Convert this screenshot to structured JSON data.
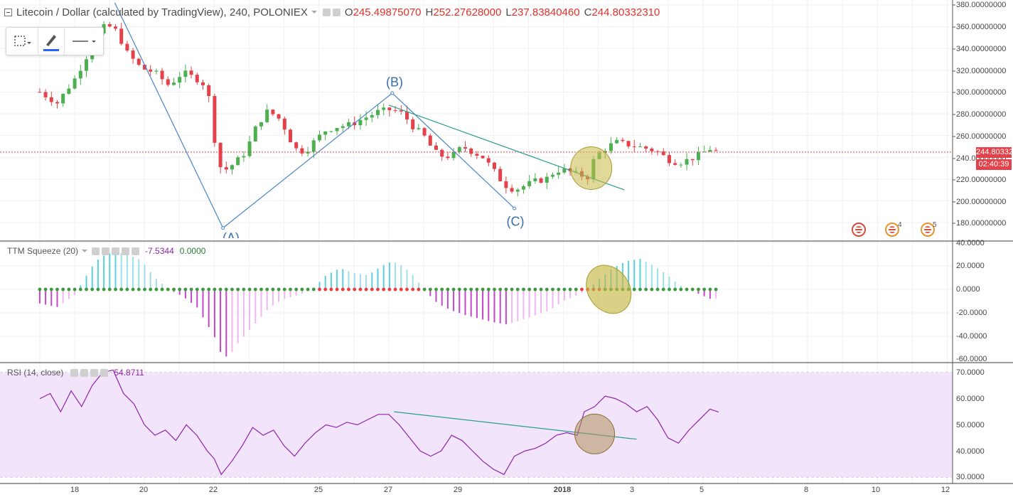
{
  "symbol_header": {
    "title": "Litecoin / Dollar (calculated by TradingView), 240, POLONIEX",
    "open_label": "O",
    "open": "245.49875070",
    "high_label": "H",
    "high": "252.27628000",
    "low_label": "L",
    "low": "237.83840460",
    "close_label": "C",
    "close": "244.80332310"
  },
  "toolbar": {
    "tools": [
      "selection-icon",
      "brush-icon",
      "line-style-icon"
    ],
    "brush_color": "#2962ff"
  },
  "price_axis": {
    "labels": [
      "380.00000000",
      "360.00000000",
      "340.00000000",
      "320.00000000",
      "300.00000000",
      "280.00000000",
      "260.00000000",
      "240.00000000",
      "220.00000000",
      "200.00000000",
      "180.00000000"
    ],
    "last_price": "244.80332310",
    "countdown": "02:40:39"
  },
  "waves": {
    "a": "(A)",
    "b": "(B)",
    "c": "(C)"
  },
  "events": {
    "count_2": "4",
    "count_3": "5"
  },
  "squeeze": {
    "legend": "TTM Squeeze (20)",
    "value1": "-7.5344",
    "value2": "0.0000",
    "axis_labels": [
      "40.0000",
      "20.0000",
      "0.0000",
      "-20.0000",
      "-40.0000",
      "-60.0000"
    ]
  },
  "rsi": {
    "legend": "RSI (14, close)",
    "value": "54.8711",
    "axis_labels": [
      "70.0000",
      "60.0000",
      "50.0000",
      "40.0000",
      "30.0000"
    ]
  },
  "time_axis": {
    "labels": [
      "18",
      "20",
      "22",
      "25",
      "27",
      "29",
      "2018",
      "3",
      "5",
      "8",
      "10",
      "12"
    ]
  },
  "colors": {
    "up": "#4caf50",
    "down": "#e5414a",
    "wave_line": "#4a86c8",
    "trend_line": "#2a9d8f",
    "highlight": "#c6b946",
    "rsi_line": "#8e24aa",
    "rsi_band": "#f1e4fb"
  },
  "chart_data": [
    {
      "type": "candlestick",
      "title": "Litecoin / Dollar (calculated by TradingView), 240, POLONIEX",
      "x_categories": [
        "18",
        "20",
        "22",
        "25",
        "27",
        "29",
        "2018",
        "3",
        "5",
        "8",
        "10",
        "12"
      ],
      "ylim": [
        172,
        385
      ],
      "close_path": [
        [
          17.0,
          300
        ],
        [
          17.5,
          290
        ],
        [
          18.0,
          312
        ],
        [
          18.3,
          330
        ],
        [
          18.6,
          350
        ],
        [
          18.9,
          362
        ],
        [
          19.2,
          356
        ],
        [
          19.5,
          336
        ],
        [
          19.9,
          322
        ],
        [
          20.3,
          318
        ],
        [
          20.7,
          306
        ],
        [
          21.1,
          318
        ],
        [
          21.5,
          312
        ],
        [
          21.8,
          305
        ],
        [
          22.0,
          258
        ],
        [
          22.15,
          232
        ],
        [
          22.3,
          228
        ],
        [
          22.6,
          235
        ],
        [
          22.9,
          245
        ],
        [
          23.2,
          268
        ],
        [
          23.5,
          282
        ],
        [
          23.8,
          278
        ],
        [
          24.0,
          268
        ],
        [
          24.3,
          248
        ],
        [
          24.6,
          245
        ],
        [
          24.9,
          256
        ],
        [
          25.2,
          265
        ],
        [
          25.5,
          268
        ],
        [
          25.9,
          270
        ],
        [
          26.3,
          276
        ],
        [
          26.7,
          282
        ],
        [
          27.1,
          284
        ],
        [
          27.4,
          280
        ],
        [
          27.7,
          268
        ],
        [
          28.0,
          260
        ],
        [
          28.3,
          245
        ],
        [
          28.6,
          240
        ],
        [
          28.9,
          243
        ],
        [
          29.1,
          250
        ],
        [
          29.4,
          245
        ],
        [
          29.7,
          240
        ],
        [
          30.0,
          228
        ],
        [
          30.3,
          215
        ],
        [
          30.6,
          210
        ],
        [
          30.9,
          214
        ],
        [
          31.2,
          218
        ],
        [
          31.5,
          220
        ],
        [
          31.8,
          228
        ],
        [
          32.1,
          228
        ],
        [
          32.4,
          224
        ],
        [
          32.7,
          222
        ],
        [
          32.9,
          240
        ],
        [
          33.2,
          248
        ],
        [
          33.5,
          254
        ],
        [
          33.8,
          252
        ],
        [
          34.1,
          250
        ],
        [
          34.4,
          248
        ],
        [
          34.7,
          245
        ],
        [
          35.0,
          238
        ],
        [
          35.3,
          235
        ],
        [
          35.6,
          238
        ],
        [
          35.9,
          242
        ],
        [
          36.2,
          248
        ],
        [
          36.45,
          245
        ]
      ],
      "last_price": 244.8033231,
      "waves": [
        {
          "label": "(A)",
          "x": 22.25,
          "y": 175
        },
        {
          "label": "(B)",
          "x": 27.1,
          "y": 299
        },
        {
          "label": "(C)",
          "x": 30.6,
          "y": 193
        }
      ]
    },
    {
      "type": "bar",
      "title": "TTM Squeeze (20)",
      "ylim": [
        -62,
        42
      ],
      "momentum_path": [
        [
          17.0,
          -12
        ],
        [
          17.5,
          -15
        ],
        [
          18.0,
          -5
        ],
        [
          18.3,
          10
        ],
        [
          18.6,
          24
        ],
        [
          18.9,
          30
        ],
        [
          19.2,
          32
        ],
        [
          19.5,
          30
        ],
        [
          19.9,
          25
        ],
        [
          20.3,
          10
        ],
        [
          20.7,
          0
        ],
        [
          21.1,
          -6
        ],
        [
          21.5,
          -15
        ],
        [
          21.8,
          -30
        ],
        [
          22.0,
          -40
        ],
        [
          22.2,
          -55
        ],
        [
          22.4,
          -58
        ],
        [
          22.7,
          -45
        ],
        [
          23.0,
          -35
        ],
        [
          23.3,
          -25
        ],
        [
          23.6,
          -15
        ],
        [
          24.0,
          -8
        ],
        [
          24.4,
          -5
        ],
        [
          24.8,
          0
        ],
        [
          25.2,
          12
        ],
        [
          25.6,
          18
        ],
        [
          26.0,
          14
        ],
        [
          26.4,
          12
        ],
        [
          26.8,
          20
        ],
        [
          27.1,
          24
        ],
        [
          27.4,
          20
        ],
        [
          27.7,
          12
        ],
        [
          28.0,
          0
        ],
        [
          28.4,
          -12
        ],
        [
          28.8,
          -18
        ],
        [
          29.2,
          -22
        ],
        [
          29.6,
          -25
        ],
        [
          30.0,
          -28
        ],
        [
          30.4,
          -30
        ],
        [
          30.8,
          -26
        ],
        [
          31.2,
          -22
        ],
        [
          31.6,
          -18
        ],
        [
          32.0,
          -10
        ],
        [
          32.4,
          -5
        ],
        [
          32.7,
          0
        ],
        [
          33.0,
          8
        ],
        [
          33.4,
          18
        ],
        [
          33.8,
          24
        ],
        [
          34.2,
          26
        ],
        [
          34.6,
          20
        ],
        [
          35.0,
          12
        ],
        [
          35.3,
          4
        ],
        [
          35.6,
          0
        ],
        [
          35.9,
          -4
        ],
        [
          36.2,
          -8
        ],
        [
          36.45,
          -7.5
        ]
      ],
      "last_value": -7.5344
    },
    {
      "type": "line",
      "title": "RSI (14, close)",
      "ylim": [
        28,
        72
      ],
      "bands": [
        30,
        70
      ],
      "x_y": [
        [
          17.0,
          60
        ],
        [
          17.3,
          62
        ],
        [
          17.6,
          55
        ],
        [
          17.9,
          63
        ],
        [
          18.2,
          57
        ],
        [
          18.5,
          65
        ],
        [
          18.8,
          70
        ],
        [
          19.1,
          71
        ],
        [
          19.4,
          62
        ],
        [
          19.7,
          58
        ],
        [
          20.0,
          50
        ],
        [
          20.3,
          46
        ],
        [
          20.6,
          48
        ],
        [
          20.9,
          44
        ],
        [
          21.2,
          50
        ],
        [
          21.5,
          46
        ],
        [
          21.8,
          40
        ],
        [
          22.0,
          37
        ],
        [
          22.2,
          31
        ],
        [
          22.5,
          36
        ],
        [
          22.8,
          42
        ],
        [
          23.1,
          49
        ],
        [
          23.4,
          46
        ],
        [
          23.7,
          48
        ],
        [
          24.0,
          42
        ],
        [
          24.3,
          38
        ],
        [
          24.6,
          43
        ],
        [
          24.9,
          47
        ],
        [
          25.2,
          50
        ],
        [
          25.5,
          49
        ],
        [
          25.8,
          51
        ],
        [
          26.1,
          50
        ],
        [
          26.4,
          52
        ],
        [
          26.7,
          54
        ],
        [
          27.0,
          54
        ],
        [
          27.3,
          50
        ],
        [
          27.6,
          45
        ],
        [
          27.9,
          40
        ],
        [
          28.2,
          38
        ],
        [
          28.5,
          40
        ],
        [
          28.8,
          46
        ],
        [
          29.1,
          44
        ],
        [
          29.4,
          40
        ],
        [
          29.7,
          36
        ],
        [
          30.0,
          33
        ],
        [
          30.3,
          31
        ],
        [
          30.6,
          38
        ],
        [
          30.9,
          40
        ],
        [
          31.2,
          41
        ],
        [
          31.5,
          43
        ],
        [
          31.8,
          46
        ],
        [
          32.1,
          47
        ],
        [
          32.4,
          46
        ],
        [
          32.6,
          55
        ],
        [
          32.9,
          57
        ],
        [
          33.2,
          61
        ],
        [
          33.5,
          60
        ],
        [
          33.8,
          58
        ],
        [
          34.1,
          55
        ],
        [
          34.4,
          57
        ],
        [
          34.7,
          52
        ],
        [
          35.0,
          45
        ],
        [
          35.3,
          43
        ],
        [
          35.6,
          48
        ],
        [
          35.9,
          52
        ],
        [
          36.2,
          56
        ],
        [
          36.45,
          54.87
        ]
      ],
      "last_value": 54.8711
    }
  ]
}
